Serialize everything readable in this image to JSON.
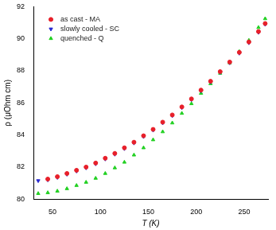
{
  "chart_data": {
    "type": "scatter",
    "x_label": "T (K)",
    "y_label": "ρ (μOhm cm)",
    "x": [
      35,
      45,
      55,
      65,
      75,
      85,
      95,
      105,
      115,
      125,
      135,
      145,
      155,
      165,
      175,
      185,
      195,
      205,
      215,
      225,
      235,
      245,
      255,
      265,
      272
    ],
    "series": [
      {
        "name": "as cast - MA",
        "color": "#e8202a",
        "marker": "circle",
        "values": [
          null,
          81.25,
          81.4,
          81.6,
          81.8,
          82.0,
          82.25,
          82.55,
          82.85,
          83.2,
          83.55,
          83.95,
          84.35,
          84.8,
          85.25,
          85.75,
          86.25,
          86.8,
          87.35,
          87.95,
          88.55,
          89.15,
          89.8,
          90.45,
          90.95
        ]
      },
      {
        "name": "slowly cooled - SC",
        "color": "#2a2ad0",
        "marker": "triangle-down",
        "values": [
          81.15,
          81.2,
          81.35,
          81.55,
          81.75,
          81.95,
          82.2,
          82.5,
          82.8,
          83.15,
          83.5,
          83.9,
          84.3,
          84.75,
          85.2,
          85.7,
          86.2,
          86.75,
          87.3,
          87.9,
          88.5,
          89.1,
          89.75,
          90.4,
          90.9
        ]
      },
      {
        "name": "quenched - Q",
        "color": "#22d022",
        "marker": "triangle",
        "values": [
          80.35,
          80.4,
          80.5,
          80.65,
          80.85,
          81.05,
          81.3,
          81.6,
          81.95,
          82.3,
          82.75,
          83.2,
          83.7,
          84.2,
          84.75,
          85.35,
          85.95,
          86.6,
          87.2,
          87.85,
          88.5,
          89.2,
          89.9,
          90.7,
          91.25
        ]
      }
    ],
    "xlim": [
      30,
      275
    ],
    "xticks": [
      50,
      100,
      150,
      200,
      250
    ],
    "ylim": [
      80,
      92
    ],
    "yticks": [
      80,
      82,
      84,
      86,
      88,
      90,
      92
    ],
    "grid": false,
    "legend": "upper left"
  }
}
